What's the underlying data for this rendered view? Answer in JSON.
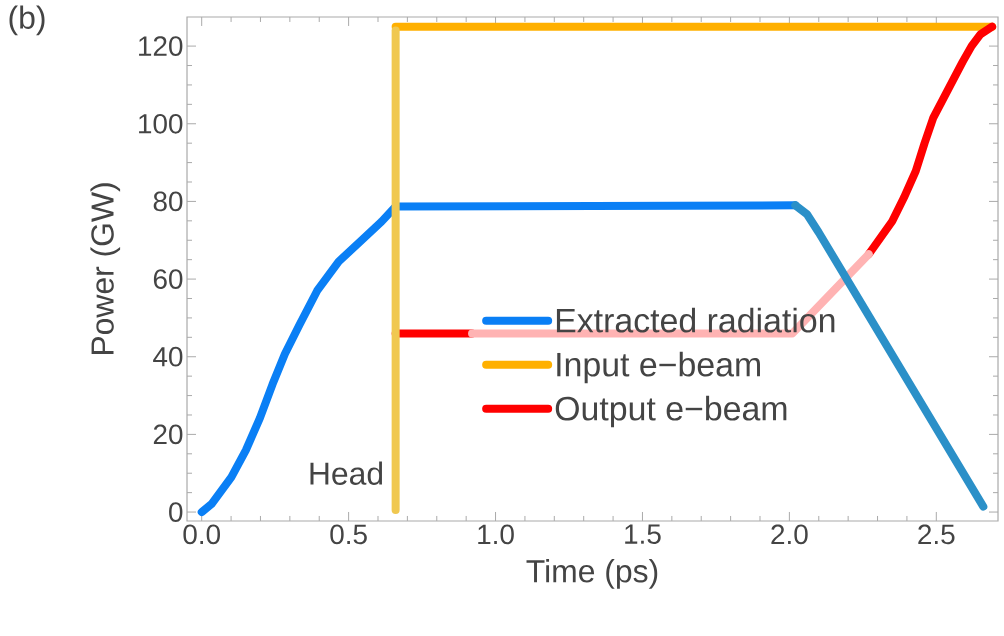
{
  "chart_data": {
    "type": "line",
    "xlabel": "Time (ps)",
    "ylabel": "Power (GW)",
    "xlim": [
      -0.05,
      2.71
    ],
    "ylim": [
      -2.3,
      127.5
    ],
    "xticks": [
      {
        "value": 0,
        "label": "0.0"
      },
      0.5,
      {
        "value": 1,
        "label": "1.0"
      },
      1.5,
      {
        "value": 2,
        "label": "2.0"
      },
      2.5
    ],
    "yticks": [
      0,
      20,
      40,
      60,
      80,
      100,
      120
    ],
    "legend": "right",
    "marker": "none",
    "line_style": "solid",
    "annotations": [
      "(b)",
      {
        "text": "Head",
        "x": 0.66,
        "y": 10
      }
    ],
    "series": [
      {
        "name": "Extracted radiation",
        "color": "#0a7ff5",
        "x": [
          0,
          0.034,
          0.101,
          0.15,
          0.198,
          0.241,
          0.283,
          0.332,
          0.393,
          0.466,
          0.551,
          0.612,
          0.66,
          2.02
        ],
        "values": [
          0,
          2.1,
          9,
          15.9,
          24.2,
          32.9,
          40.7,
          48.1,
          57,
          64.5,
          70.5,
          74.8,
          78.7,
          79
        ]
      },
      {
        "name": "Input e−beam",
        "color": "#ffb000",
        "x": [
          0.66,
          2.69
        ],
        "values": [
          125,
          125
        ]
      },
      {
        "name": "Output e−beam",
        "color": "#ff0000",
        "x": [
          0.66,
          0.92,
          2.1,
          2.27,
          2.35,
          2.39,
          2.43,
          2.46,
          2.49,
          2.56,
          2.59,
          2.62,
          2.65,
          2.69
        ],
        "values": [
          46,
          46,
          null,
          66.4,
          74.9,
          81,
          87.8,
          95,
          101.6,
          111.7,
          116,
          120,
          123,
          125
        ]
      },
      {
        "color": "#ffb3b3",
        "x": [
          0.92,
          2.01,
          2.27
        ],
        "values": [
          46,
          46,
          66.4
        ]
      },
      {
        "color": "#2b90c8",
        "x": [
          2.02,
          2.06,
          2.1,
          2.66
        ],
        "values": [
          79,
          76.7,
          72,
          1.4
        ]
      },
      {
        "color": "#f0c850",
        "x": [
          0.66,
          0.66
        ],
        "values": [
          0.5,
          124
        ]
      }
    ]
  }
}
